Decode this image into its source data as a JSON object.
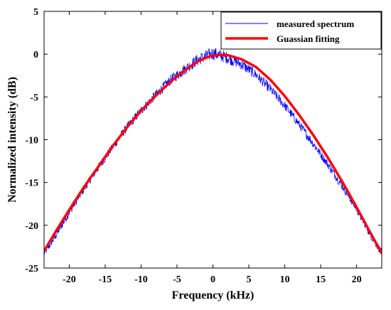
{
  "chart_data": {
    "type": "line",
    "xlabel": "Frequency (kHz)",
    "ylabel": "Normalized intensity (dB)",
    "xlim": [
      -23.5,
      23.5
    ],
    "ylim": [
      -25,
      5
    ],
    "x_ticks": [
      -20,
      -15,
      -10,
      -5,
      0,
      5,
      10,
      15,
      20
    ],
    "y_ticks": [
      5,
      0,
      -5,
      -10,
      -15,
      -20,
      -25
    ],
    "grid": false,
    "legend_position": "top-right",
    "series": [
      {
        "name": "measured spectrum",
        "color": "#0000ff",
        "style": "thin noisy line",
        "x": [
          -23.5,
          -22,
          -20,
          -18,
          -16,
          -14,
          -12,
          -10,
          -8,
          -6,
          -4,
          -2,
          0,
          2,
          4,
          6,
          8,
          10,
          12,
          14,
          16,
          18,
          20,
          22,
          23.5
        ],
        "y": [
          -23.3,
          -21.4,
          -18.5,
          -15.8,
          -13.3,
          -10.9,
          -8.6,
          -6.6,
          -4.8,
          -3.1,
          -1.8,
          -0.6,
          0.1,
          -0.4,
          -1.2,
          -2.4,
          -4.1,
          -6.0,
          -8.2,
          -10.5,
          -12.9,
          -15.4,
          -18.1,
          -21.2,
          -23.2
        ],
        "noise_db": 0.6
      },
      {
        "name": "Guassian fitting",
        "color": "#ff0000",
        "style": "thick line",
        "x": [
          -23.5,
          -22,
          -20,
          -18,
          -16,
          -14,
          -12,
          -10,
          -8,
          -6,
          -4,
          -2,
          0,
          2,
          4,
          6,
          8,
          10,
          12,
          14,
          16,
          18,
          20,
          22,
          23.5
        ],
        "y": [
          -23.0,
          -20.9,
          -18.2,
          -15.6,
          -13.2,
          -10.8,
          -8.6,
          -6.6,
          -4.9,
          -3.3,
          -1.9,
          -0.8,
          -0.1,
          -0.1,
          -0.6,
          -1.5,
          -3.0,
          -4.9,
          -7.1,
          -9.5,
          -12.1,
          -14.9,
          -17.9,
          -21.0,
          -23.3
        ]
      }
    ]
  }
}
